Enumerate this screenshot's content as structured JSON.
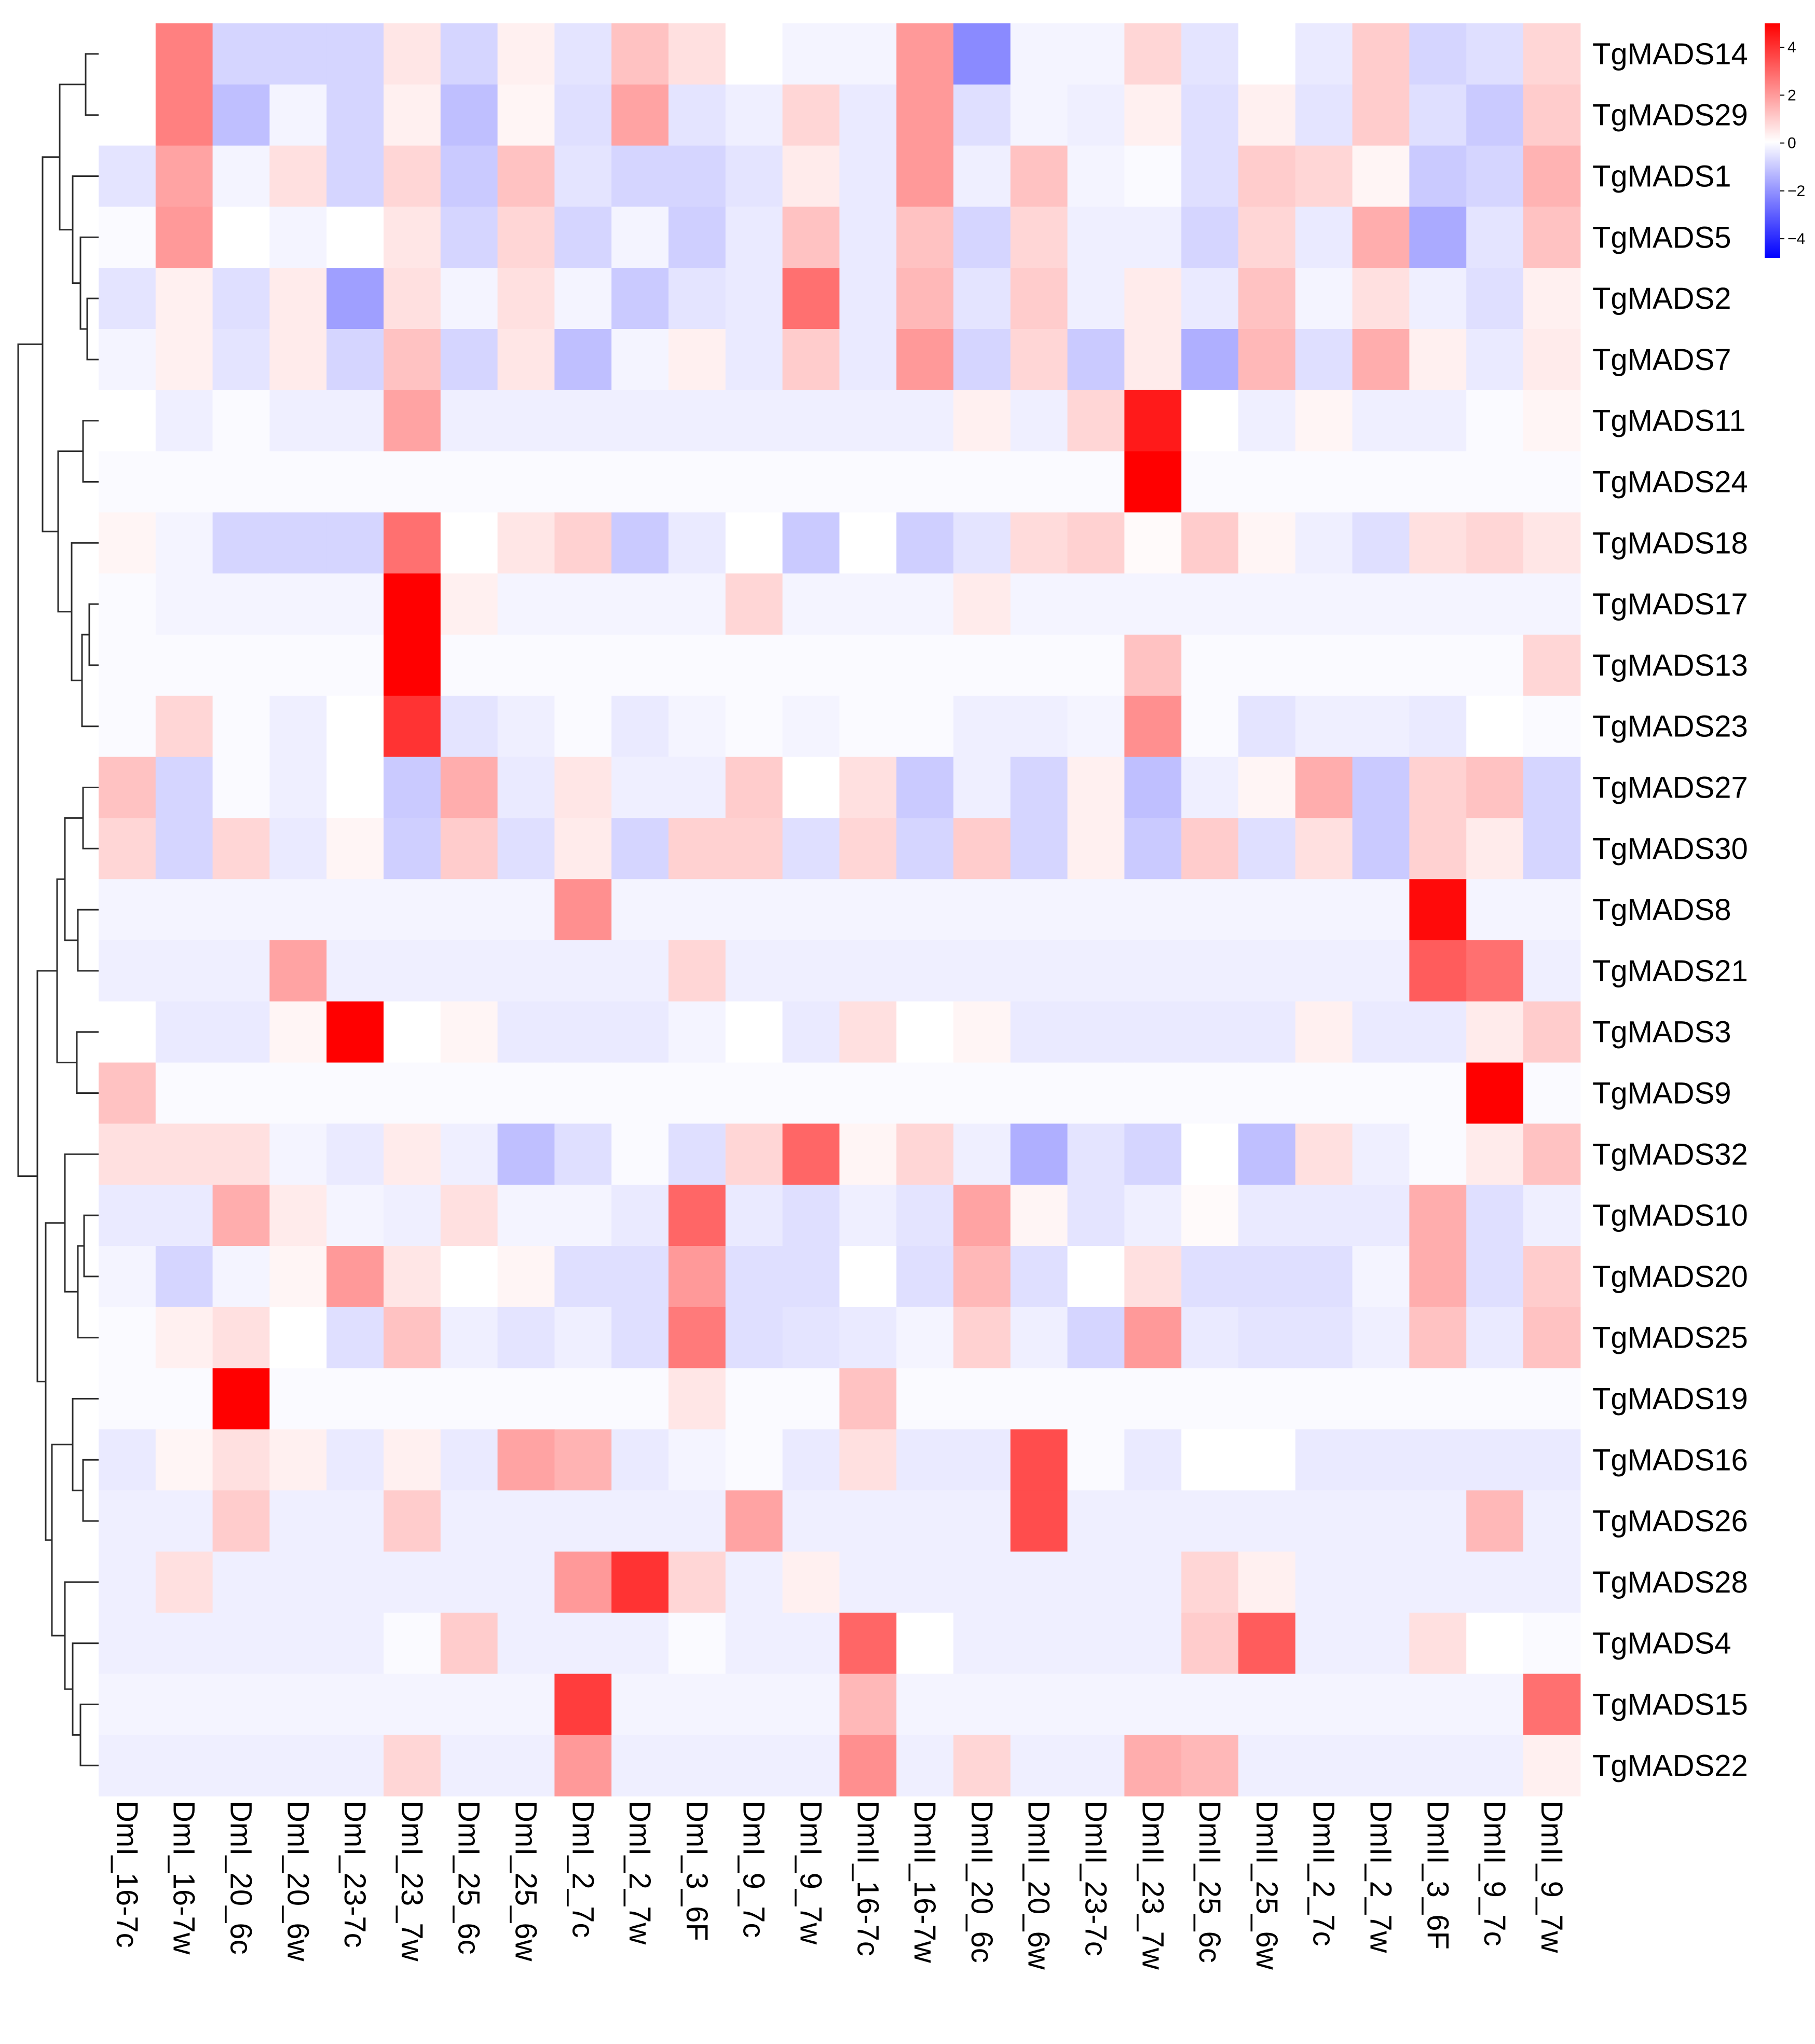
{
  "chart_data": {
    "type": "heatmap",
    "title": "",
    "columns": [
      "DmI_16-7c",
      "DmI_16-7w",
      "DmI_20_6c",
      "DmI_20_6w",
      "DmI_23-7c",
      "DmI_23_7w",
      "DmI_25_6c",
      "DmI_25_6w",
      "DmI_2_7c",
      "DmI_2_7w",
      "DmI_3_6F",
      "DmI_9_7c",
      "DmI_9_7w",
      "DmII_16-7c",
      "DmII_16-7w",
      "DmII_20_6c",
      "DmII_20_6w",
      "DmII_23-7c",
      "DmII_23_7w",
      "DmII_25_6c",
      "DmII_25_6w",
      "DmII_2_7c",
      "DmII_2_7w",
      "DmII_3_6F",
      "DmII_9_7c",
      "DmII_9_7w"
    ],
    "rows": [
      "TgMADS14",
      "TgMADS29",
      "TgMADS1",
      "TgMADS5",
      "TgMADS2",
      "TgMADS7",
      "TgMADS11",
      "TgMADS24",
      "TgMADS18",
      "TgMADS17",
      "TgMADS13",
      "TgMADS23",
      "TgMADS27",
      "TgMADS30",
      "TgMADS8",
      "TgMADS21",
      "TgMADS3",
      "TgMADS9",
      "TgMADS32",
      "TgMADS10",
      "TgMADS20",
      "TgMADS25",
      "TgMADS19",
      "TgMADS16",
      "TgMADS26",
      "TgMADS28",
      "TgMADS4",
      "TgMADS15",
      "TgMADS22"
    ],
    "values": [
      [
        0,
        2.5,
        -0.8,
        -0.8,
        -0.8,
        0.5,
        -0.8,
        0.3,
        -0.5,
        1.2,
        0.6,
        0,
        -0.2,
        -0.2,
        2.0,
        -2.2,
        -0.2,
        -0.2,
        0.8,
        -0.5,
        0,
        -0.4,
        1.0,
        -0.8,
        -0.6,
        0.8
      ],
      [
        0,
        2.5,
        -1.2,
        -0.2,
        -0.8,
        0.3,
        -1.2,
        0.2,
        -0.6,
        1.8,
        -0.5,
        -0.3,
        0.8,
        -0.4,
        2.0,
        -0.6,
        -0.2,
        -0.3,
        0.3,
        -0.6,
        0.3,
        -0.5,
        1.0,
        -0.6,
        -1.0,
        1.0
      ],
      [
        -0.5,
        1.8,
        -0.2,
        0.6,
        -0.8,
        0.8,
        -1.0,
        1.2,
        -0.5,
        -0.8,
        -0.8,
        -0.5,
        0.4,
        -0.4,
        2.0,
        -0.3,
        1.2,
        -0.2,
        -0.1,
        -0.6,
        1.0,
        0.8,
        0.2,
        -1.0,
        -0.8,
        1.5
      ],
      [
        -0.1,
        2.0,
        0,
        -0.2,
        0,
        0.5,
        -0.8,
        0.8,
        -0.8,
        -0.2,
        -0.9,
        -0.4,
        1.2,
        -0.4,
        1.2,
        -0.8,
        0.8,
        -0.3,
        -0.3,
        -0.8,
        0.8,
        -0.4,
        1.6,
        -1.6,
        -0.5,
        1.2
      ],
      [
        -0.5,
        0.3,
        -0.6,
        0.4,
        -1.8,
        0.6,
        -0.2,
        0.6,
        -0.2,
        -1.0,
        -0.5,
        -0.4,
        2.8,
        -0.4,
        1.4,
        -0.5,
        1.0,
        -0.3,
        0.4,
        -0.4,
        1.2,
        -0.2,
        0.6,
        -0.3,
        -0.6,
        0.3
      ],
      [
        -0.2,
        0.3,
        -0.5,
        0.4,
        -0.8,
        1.2,
        -0.8,
        0.5,
        -1.2,
        -0.2,
        0.3,
        -0.4,
        1.0,
        -0.4,
        2.0,
        -0.8,
        0.8,
        -1.0,
        0.4,
        -1.5,
        1.4,
        -0.6,
        1.6,
        0.3,
        -0.4,
        0.4
      ],
      [
        0,
        -0.3,
        -0.1,
        -0.3,
        -0.3,
        1.8,
        -0.3,
        -0.3,
        -0.3,
        -0.3,
        -0.3,
        -0.3,
        -0.3,
        -0.3,
        -0.3,
        0.3,
        -0.3,
        0.8,
        4.5,
        0,
        -0.3,
        0.2,
        -0.3,
        -0.3,
        -0.1,
        0.2
      ],
      [
        -0.1,
        -0.1,
        -0.1,
        -0.1,
        -0.1,
        -0.1,
        -0.1,
        -0.1,
        -0.1,
        -0.1,
        -0.1,
        -0.1,
        -0.1,
        -0.1,
        -0.1,
        -0.1,
        -0.1,
        -0.1,
        5.0,
        -0.1,
        -0.1,
        -0.1,
        -0.1,
        -0.1,
        -0.1,
        -0.1
      ],
      [
        0.2,
        -0.2,
        -0.8,
        -0.8,
        -0.8,
        2.8,
        0,
        0.5,
        0.9,
        -1.0,
        -0.4,
        0,
        -1.0,
        0,
        -0.9,
        -0.5,
        0.7,
        0.9,
        0.1,
        1.0,
        0.2,
        -0.3,
        -0.6,
        0.6,
        0.8,
        0.5
      ],
      [
        -0.1,
        -0.2,
        -0.2,
        -0.2,
        -0.2,
        5.0,
        0.3,
        -0.2,
        -0.2,
        -0.2,
        -0.2,
        0.8,
        -0.2,
        -0.2,
        -0.2,
        0.4,
        -0.2,
        -0.2,
        -0.2,
        -0.2,
        -0.2,
        -0.2,
        -0.2,
        -0.2,
        -0.2,
        -0.2
      ],
      [
        -0.1,
        -0.1,
        -0.1,
        -0.1,
        -0.1,
        5.0,
        -0.1,
        -0.1,
        -0.1,
        -0.1,
        -0.1,
        -0.1,
        -0.1,
        -0.1,
        -0.1,
        -0.1,
        -0.1,
        -0.1,
        1.2,
        -0.1,
        -0.1,
        -0.1,
        -0.1,
        -0.1,
        -0.1,
        0.8
      ],
      [
        -0.1,
        0.8,
        -0.1,
        -0.3,
        0,
        4.0,
        -0.5,
        -0.3,
        -0.1,
        -0.4,
        -0.2,
        -0.1,
        -0.2,
        -0.1,
        -0.1,
        -0.3,
        -0.3,
        -0.2,
        2.2,
        -0.1,
        -0.5,
        -0.3,
        -0.3,
        -0.4,
        0,
        -0.1
      ],
      [
        1.2,
        -0.8,
        -0.1,
        -0.3,
        0,
        -1.0,
        1.6,
        -0.4,
        0.5,
        -0.3,
        -0.3,
        1.0,
        0,
        0.6,
        -1.0,
        -0.3,
        -0.8,
        0.3,
        -1.2,
        -0.3,
        0.2,
        1.6,
        -1.0,
        0.9,
        1.2,
        -0.8
      ],
      [
        0.8,
        -0.8,
        0.8,
        -0.4,
        0.2,
        -0.9,
        1.0,
        -0.6,
        0.4,
        -0.8,
        0.9,
        0.9,
        -0.6,
        0.8,
        -0.8,
        1.0,
        -0.8,
        0.3,
        -1.0,
        1.0,
        -0.6,
        0.6,
        -1.0,
        0.9,
        0.4,
        -0.8
      ],
      [
        -0.2,
        -0.2,
        -0.2,
        -0.2,
        -0.2,
        -0.2,
        -0.2,
        -0.2,
        2.2,
        -0.2,
        -0.2,
        -0.2,
        -0.2,
        -0.2,
        -0.2,
        -0.2,
        -0.2,
        -0.2,
        -0.2,
        -0.2,
        -0.2,
        -0.2,
        -0.2,
        4.8,
        -0.2,
        -0.2
      ],
      [
        -0.3,
        -0.3,
        -0.3,
        1.8,
        -0.3,
        -0.3,
        -0.3,
        -0.3,
        -0.3,
        -0.3,
        0.8,
        -0.3,
        -0.3,
        -0.3,
        -0.3,
        -0.3,
        -0.3,
        -0.3,
        -0.3,
        -0.3,
        -0.3,
        -0.3,
        -0.3,
        3.2,
        2.8,
        -0.3
      ],
      [
        0,
        -0.4,
        -0.4,
        0.2,
        5.0,
        0,
        0.2,
        -0.4,
        -0.4,
        -0.4,
        -0.2,
        0,
        -0.4,
        0.6,
        0,
        0.2,
        -0.4,
        -0.4,
        -0.4,
        -0.4,
        -0.4,
        0.3,
        -0.4,
        -0.4,
        0.4,
        1.0
      ],
      [
        1.2,
        -0.1,
        -0.1,
        -0.1,
        -0.1,
        -0.1,
        -0.1,
        -0.1,
        -0.1,
        -0.1,
        -0.1,
        -0.1,
        -0.1,
        -0.1,
        -0.1,
        -0.1,
        -0.1,
        -0.1,
        -0.1,
        -0.1,
        -0.1,
        -0.1,
        -0.1,
        -0.1,
        5.0,
        -0.1
      ],
      [
        0.6,
        0.6,
        0.6,
        -0.2,
        -0.4,
        0.4,
        -0.3,
        -1.2,
        -0.6,
        -0.1,
        -0.6,
        0.8,
        3.0,
        0.2,
        0.8,
        -0.3,
        -1.5,
        -0.5,
        -0.8,
        0,
        -1.2,
        0.6,
        -0.3,
        -0.1,
        0.4,
        1.2
      ],
      [
        -0.4,
        -0.4,
        1.6,
        0.4,
        -0.2,
        -0.3,
        0.6,
        -0.2,
        -0.2,
        -0.4,
        3.0,
        -0.4,
        -0.6,
        -0.3,
        -0.5,
        1.8,
        0.2,
        -0.5,
        -0.3,
        0.1,
        -0.4,
        -0.4,
        -0.4,
        1.6,
        -0.6,
        -0.3
      ],
      [
        -0.2,
        -0.8,
        -0.2,
        0.2,
        2.0,
        0.5,
        0,
        0.2,
        -0.6,
        -0.6,
        2.0,
        -0.6,
        -0.6,
        0,
        -0.6,
        1.4,
        -0.6,
        0,
        0.6,
        -0.6,
        -0.6,
        -0.6,
        -0.2,
        1.6,
        -0.6,
        1.0
      ],
      [
        -0.1,
        0.3,
        0.6,
        0,
        -0.6,
        1.2,
        -0.3,
        -0.5,
        -0.3,
        -0.6,
        2.6,
        -0.6,
        -0.5,
        -0.4,
        -0.2,
        0.9,
        -0.3,
        -0.8,
        2.0,
        -0.4,
        -0.5,
        -0.5,
        -0.3,
        1.2,
        -0.4,
        1.2
      ],
      [
        -0.1,
        -0.1,
        5.0,
        -0.1,
        -0.1,
        -0.1,
        -0.1,
        -0.1,
        -0.1,
        -0.1,
        0.5,
        -0.1,
        -0.1,
        1.2,
        -0.1,
        -0.1,
        -0.1,
        -0.1,
        -0.1,
        -0.1,
        -0.1,
        -0.1,
        -0.1,
        -0.1,
        -0.1,
        -0.1
      ],
      [
        -0.4,
        0.2,
        0.6,
        0.3,
        -0.4,
        0.3,
        -0.4,
        1.8,
        1.5,
        -0.4,
        -0.2,
        -0.1,
        -0.4,
        0.6,
        -0.4,
        -0.4,
        3.5,
        -0.1,
        -0.4,
        0,
        0,
        -0.4,
        -0.4,
        -0.4,
        -0.4,
        -0.4
      ],
      [
        -0.3,
        -0.3,
        1.0,
        -0.3,
        -0.3,
        1.0,
        -0.3,
        -0.3,
        -0.3,
        -0.3,
        -0.3,
        1.8,
        -0.3,
        -0.3,
        -0.3,
        -0.3,
        3.5,
        -0.3,
        -0.3,
        -0.3,
        -0.3,
        -0.3,
        -0.3,
        -0.3,
        1.4,
        -0.3
      ],
      [
        -0.3,
        0.6,
        -0.3,
        -0.3,
        -0.3,
        -0.3,
        -0.3,
        -0.3,
        2.0,
        4.0,
        0.8,
        -0.3,
        0.3,
        -0.3,
        -0.3,
        -0.3,
        -0.3,
        -0.3,
        -0.3,
        0.8,
        0.3,
        -0.3,
        -0.3,
        -0.3,
        -0.3,
        -0.3
      ],
      [
        -0.3,
        -0.3,
        -0.3,
        -0.3,
        -0.3,
        -0.1,
        1.0,
        -0.3,
        -0.3,
        -0.3,
        -0.1,
        -0.3,
        -0.3,
        3.0,
        0,
        -0.3,
        -0.3,
        -0.3,
        -0.3,
        1.0,
        3.2,
        -0.3,
        -0.3,
        0.6,
        0,
        -0.1
      ],
      [
        -0.2,
        -0.2,
        -0.2,
        -0.2,
        -0.2,
        -0.2,
        -0.2,
        -0.2,
        3.8,
        -0.2,
        -0.2,
        -0.2,
        -0.2,
        1.4,
        -0.2,
        -0.2,
        -0.2,
        -0.2,
        -0.2,
        -0.2,
        -0.2,
        -0.2,
        -0.2,
        -0.2,
        -0.2,
        2.8
      ],
      [
        -0.3,
        -0.3,
        -0.3,
        -0.3,
        -0.3,
        0.8,
        -0.3,
        -0.3,
        2.0,
        -0.3,
        -0.3,
        -0.3,
        -0.3,
        2.2,
        -0.3,
        0.8,
        -0.3,
        -0.3,
        1.6,
        1.4,
        -0.3,
        -0.3,
        -0.3,
        -0.3,
        -0.3,
        0.3
      ]
    ],
    "color_scale": {
      "min": -4.8,
      "mid": 0,
      "max": 5,
      "low_color": "#0000ff",
      "mid_color": "#ffffff",
      "high_color": "#ff0000"
    },
    "legend": {
      "position": "top-right",
      "ticks": [
        4,
        2,
        0,
        -2,
        -4
      ],
      "tick_labels": [
        "4",
        "2",
        "0",
        "−2",
        "−4"
      ]
    },
    "dendrogram": {
      "side": "left",
      "clustered": "rows"
    }
  }
}
